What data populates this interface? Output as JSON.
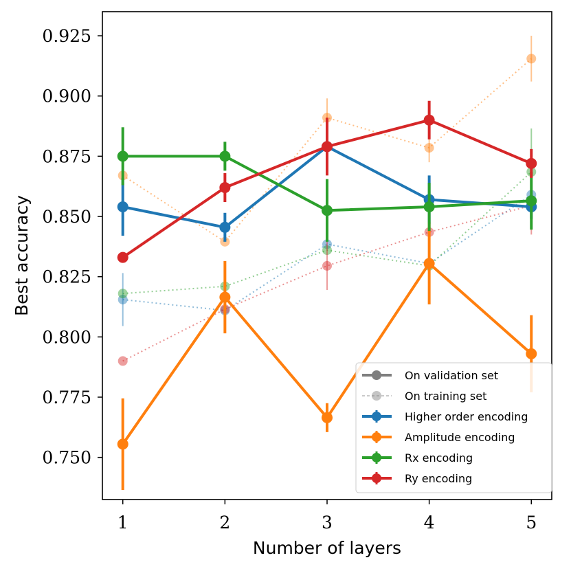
{
  "chart_data": {
    "type": "line",
    "title": "",
    "xlabel": "Number of layers",
    "ylabel": "Best accuracy",
    "x": [
      1,
      2,
      3,
      4,
      5
    ],
    "xticks": [
      "1",
      "2",
      "3",
      "4",
      "5"
    ],
    "xlim": [
      0.8,
      5.2
    ],
    "ylim": [
      0.7325,
      0.935
    ],
    "yticks": [
      "0.750",
      "0.775",
      "0.800",
      "0.825",
      "0.850",
      "0.875",
      "0.900",
      "0.925"
    ],
    "ytick_values": [
      0.75,
      0.775,
      0.8,
      0.825,
      0.85,
      0.875,
      0.9,
      0.925
    ],
    "legend_position": "lower-right",
    "legend": [
      {
        "label": "On validation set",
        "color": "#7f7f7f",
        "style": "solid"
      },
      {
        "label": "On training set",
        "color": "#7f7f7f",
        "style": "dashed"
      },
      {
        "label": "Higher order encoding",
        "color": "#1f77b4",
        "style": "solid"
      },
      {
        "label": "Amplitude encoding",
        "color": "#ff7f0e",
        "style": "solid"
      },
      {
        "label": "Rx encoding",
        "color": "#2ca02c",
        "style": "solid"
      },
      {
        "label": "Ry encoding",
        "color": "#d62728",
        "style": "solid"
      }
    ],
    "series": [
      {
        "name": "Higher order encoding (training)",
        "color": "#1f77b4",
        "set": "training",
        "values": [
          0.8155,
          0.811,
          0.8385,
          0.8305,
          0.859
        ],
        "errors": [
          0.011,
          0,
          0,
          0,
          0
        ]
      },
      {
        "name": "Amplitude encoding (training)",
        "color": "#ff7f0e",
        "set": "training",
        "values": [
          0.867,
          0.8395,
          0.891,
          0.8785,
          0.9155
        ],
        "errors": [
          0,
          0,
          0.008,
          0.006,
          0.0095
        ]
      },
      {
        "name": "Rx encoding (training)",
        "color": "#2ca02c",
        "set": "training",
        "values": [
          0.818,
          0.821,
          0.836,
          0.8295,
          0.8685
        ],
        "errors": [
          0,
          0,
          0,
          0,
          0.018
        ]
      },
      {
        "name": "Ry encoding (training)",
        "color": "#d62728",
        "set": "training",
        "values": [
          0.79,
          0.8115,
          0.8295,
          0.8435,
          0.8545
        ],
        "errors": [
          0,
          0.005,
          0.01,
          0,
          0.012
        ]
      },
      {
        "name": "Higher order encoding",
        "color": "#1f77b4",
        "set": "validation",
        "values": [
          0.854,
          0.8455,
          0.879,
          0.857,
          0.854
        ],
        "errors": [
          0.012,
          0.006,
          0.005,
          0.01,
          0.005
        ]
      },
      {
        "name": "Amplitude encoding",
        "color": "#ff7f0e",
        "set": "validation",
        "values": [
          0.7555,
          0.8165,
          0.7665,
          0.8305,
          0.793
        ],
        "errors": [
          0.019,
          0.015,
          0.006,
          0.017,
          0.016
        ]
      },
      {
        "name": "Rx encoding",
        "color": "#2ca02c",
        "set": "validation",
        "values": [
          0.875,
          0.875,
          0.8525,
          0.854,
          0.8565
        ],
        "errors": [
          0.012,
          0.006,
          0.013,
          0.01,
          0.012
        ]
      },
      {
        "name": "Ry encoding",
        "color": "#d62728",
        "set": "validation",
        "values": [
          0.833,
          0.862,
          0.879,
          0.89,
          0.872
        ],
        "errors": [
          0,
          0.006,
          0.012,
          0.008,
          0.006
        ]
      }
    ]
  }
}
